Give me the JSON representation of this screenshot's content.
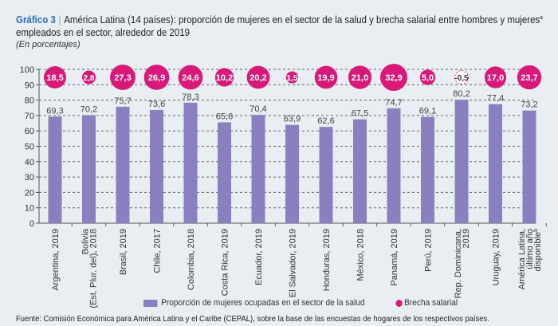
{
  "header": {
    "figure_number": "Gráfico 3",
    "title": "América Latina (14 países): proporción de mujeres en el sector de la salud y brecha salarial entre hombres y mujeres",
    "title_sup": "a",
    "title_end": " empleados en el sector, alrededor de 2019",
    "subtitle": "(En porcentajes)"
  },
  "chart_data": {
    "type": "bar",
    "categories": [
      "Argentina, 2019",
      "Bolivia (Est. Plur. del), 2018",
      "Brasil, 2019",
      "Chile, 2017",
      "Colombia, 2018",
      "Costa Rica, 2019",
      "Ecuador, 2019",
      "El Salvador, 2019",
      "Honduras, 2019",
      "México, 2018",
      "Panamá, 2019",
      "Perú, 2019",
      "Rep. Dominicana, 2019",
      "Uruguay, 2019",
      "América Latina, último año disponible"
    ],
    "category_lines": [
      [
        "Argentina, 2019"
      ],
      [
        "Bolivia",
        "(Est. Plur. del), 2018"
      ],
      [
        "Brasil, 2019"
      ],
      [
        "Chile, 2017"
      ],
      [
        "Colombia, 2018"
      ],
      [
        "Costa Rica, 2019"
      ],
      [
        "Ecuador, 2019"
      ],
      [
        "El Salvador, 2019"
      ],
      [
        "Honduras, 2019"
      ],
      [
        "México, 2018"
      ],
      [
        "Panamá, 2019"
      ],
      [
        "Perú, 2019"
      ],
      [
        "Rep. Dominicana,",
        "2019"
      ],
      [
        "Uruguay, 2019"
      ],
      [
        "América Latina,",
        "último año",
        "disponible"
      ]
    ],
    "last_category_sup": "b",
    "series": [
      {
        "name": "Proporción de mujeres ocupadas en el sector de la salud",
        "type": "bar",
        "color": "#8a80c0",
        "values": [
          69.3,
          70.2,
          75.7,
          73.6,
          78.3,
          65.6,
          70.4,
          63.9,
          62.6,
          67.5,
          74.7,
          69.1,
          80.2,
          77.4,
          73.2
        ],
        "labels": [
          "69,3",
          "70,2",
          "75,7",
          "73,6",
          "78,3",
          "65,6",
          "70,4",
          "63,9",
          "62,6",
          "67,5",
          "74,7",
          "69,1",
          "80,2",
          "77,4",
          "73,2"
        ]
      },
      {
        "name": "Brecha salarial",
        "type": "bubble",
        "color": "#d8197a",
        "values": [
          18.5,
          2.8,
          27.3,
          26.9,
          24.6,
          10.2,
          20.2,
          1.5,
          19.9,
          21.0,
          32.9,
          5.0,
          -0.5,
          17.0,
          23.7
        ],
        "labels": [
          "18,5",
          "2,8",
          "27,3",
          "26,9",
          "24,6",
          "10,2",
          "20,2",
          "1,5",
          "19,9",
          "21,0",
          "32,9",
          "5,0",
          "-0,5",
          "17,0",
          "23,7"
        ]
      }
    ],
    "ylim": [
      0,
      100
    ],
    "yticks": [
      0,
      10,
      20,
      30,
      40,
      50,
      60,
      70,
      80,
      90,
      100
    ],
    "grid": true,
    "legend": "bottom"
  },
  "source": "Fuente: Comisión Económica para América Latina y el Caribe (CEPAL), sobre la base de las encuestas de hogares de los respectivos países."
}
